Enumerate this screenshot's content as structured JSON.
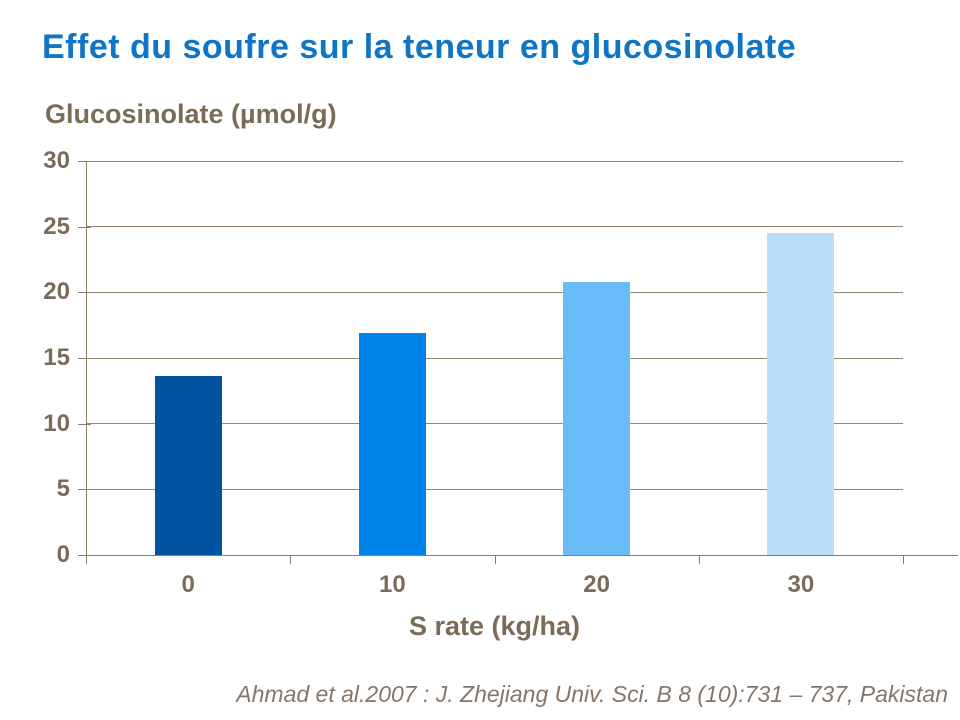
{
  "slide": {
    "title": "Effet du soufre sur la teneur en glucosinolate",
    "title_color": "#0E76C4",
    "background": "#FFFFFF"
  },
  "chart_data": {
    "type": "bar",
    "categories": [
      "0",
      "10",
      "20",
      "30"
    ],
    "values": [
      13.6,
      16.9,
      20.8,
      24.5
    ],
    "bar_colors": [
      "#00539E",
      "#0083E8",
      "#6ABCF8",
      "#BBDDF9"
    ],
    "title": "",
    "xlabel": "S rate (kg/ha)",
    "ylabel": "Glucosinolate (µmol/g)",
    "ylim": [
      0,
      30
    ],
    "yticks": [
      0,
      5,
      10,
      15,
      20,
      25,
      30
    ],
    "grid": "horizontal",
    "legend": "none",
    "gridline_color": "#95876F",
    "axis_color": "#8C7D68",
    "label_color": "#7B6C57"
  },
  "citation": {
    "text": "Ahmad et al.2007 : J. Zhejiang Univ. Sci. B 8 (10):731 – 737, Pakistan",
    "color": "#85766A"
  }
}
